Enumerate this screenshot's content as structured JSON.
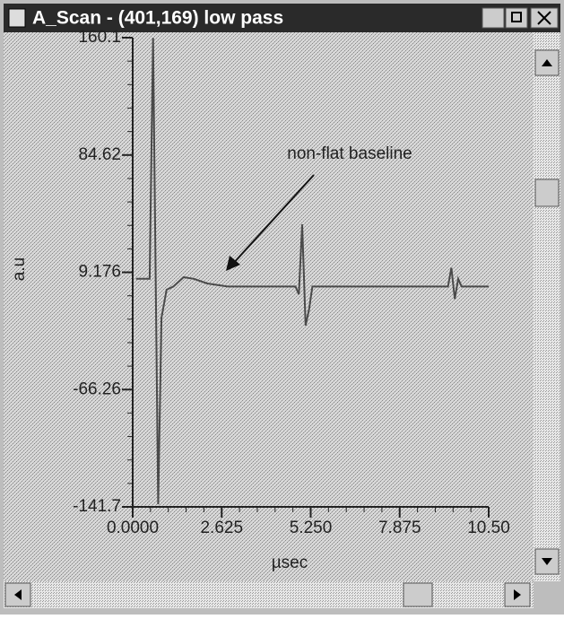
{
  "window": {
    "title": "A_Scan - (401,169)  low pass"
  },
  "chart_data": {
    "type": "line",
    "annotation": "non-flat baseline",
    "xlabel": "µsec",
    "ylabel": "a.u",
    "xlim": [
      0,
      10.5
    ],
    "xticks": [
      {
        "value": 0,
        "label": "0.0000"
      },
      2.625,
      {
        "value": 5.25,
        "label": "5.250"
      },
      7.875,
      {
        "value": 10.5,
        "label": "10.50"
      }
    ],
    "ylim": [
      -141.7,
      160.1
    ],
    "yticks": [
      160.1,
      84.62,
      9.176,
      -66.26,
      -141.7
    ],
    "series": [
      {
        "color": "#4a4a4a",
        "x": [
          0.1,
          0.5,
          0.6,
          0.75,
          0.85,
          1.0,
          1.2,
          1.5,
          1.8,
          2.2,
          2.8,
          3.5,
          4.5,
          4.8,
          4.9,
          5.0,
          5.1,
          5.2,
          5.3,
          6.5,
          8.0,
          9.3,
          9.4,
          9.5,
          9.6,
          9.7,
          10.5
        ],
        "values": [
          5,
          5,
          160,
          -140,
          -20,
          -2,
          0,
          6,
          5,
          2,
          0,
          0,
          0,
          0,
          -5,
          40,
          -25,
          -15,
          0,
          0,
          0,
          0,
          12,
          -8,
          5,
          0,
          0
        ]
      }
    ]
  }
}
